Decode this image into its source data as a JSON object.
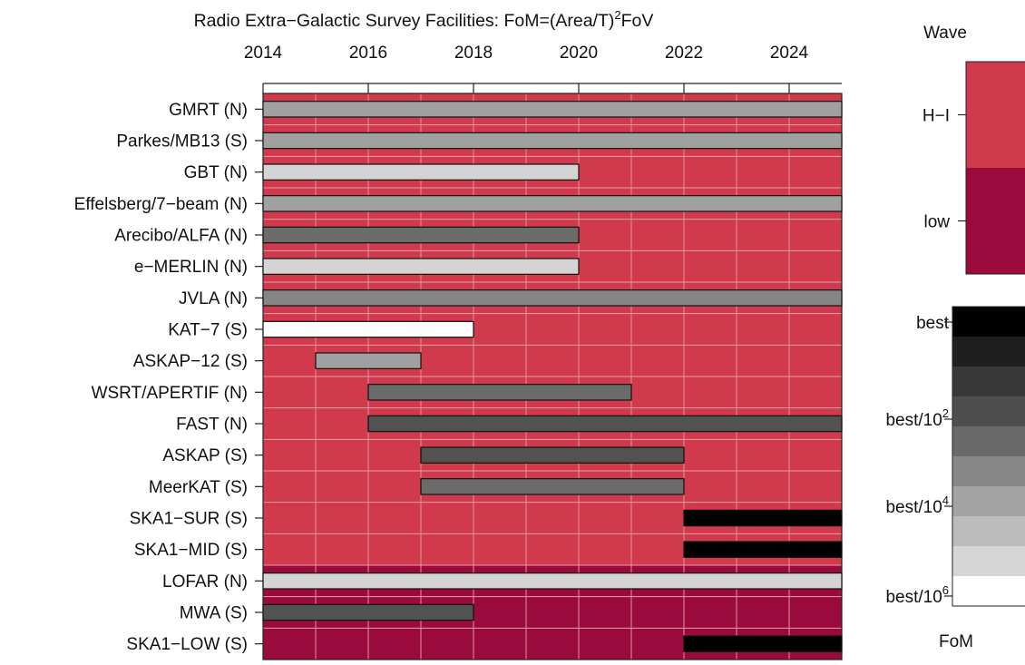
{
  "chart_data": {
    "type": "gantt",
    "title": "Radio Extra−Galactic Survey Facilities: FoM=(Area/T)",
    "title_sup": "2",
    "title_tail": "FoV",
    "x_ticks": [
      "2014",
      "2016",
      "2018",
      "2020",
      "2022",
      "2024"
    ],
    "x_tick_values": [
      2014,
      2016,
      2018,
      2020,
      2022,
      2024
    ],
    "xlim": [
      2014,
      2025
    ],
    "grid": true,
    "facilities": [
      {
        "label": "GMRT (N)",
        "start": 2014,
        "end": 2025,
        "fom_level": 6,
        "wave": "H-I"
      },
      {
        "label": "Parkes/MB13 (S)",
        "start": 2014,
        "end": 2025,
        "fom_level": 6,
        "wave": "H-I"
      },
      {
        "label": "GBT (N)",
        "start": 2014,
        "end": 2020,
        "fom_level": 8,
        "wave": "H-I"
      },
      {
        "label": "Effelsberg/7−beam (N)",
        "start": 2014,
        "end": 2025,
        "fom_level": 6,
        "wave": "H-I"
      },
      {
        "label": "Arecibo/ALFA (N)",
        "start": 2014,
        "end": 2020,
        "fom_level": 4,
        "wave": "H-I"
      },
      {
        "label": "e−MERLIN (N)",
        "start": 2014,
        "end": 2020,
        "fom_level": 8,
        "wave": "H-I"
      },
      {
        "label": "JVLA (N)",
        "start": 2014,
        "end": 2025,
        "fom_level": 5,
        "wave": "H-I"
      },
      {
        "label": "KAT−7 (S)",
        "start": 2014,
        "end": 2018,
        "fom_level": 10,
        "wave": "H-I"
      },
      {
        "label": "ASKAP−12 (S)",
        "start": 2015,
        "end": 2017,
        "fom_level": 6,
        "wave": "H-I"
      },
      {
        "label": "WSRT/APERTIF (N)",
        "start": 2016,
        "end": 2021,
        "fom_level": 4,
        "wave": "H-I"
      },
      {
        "label": "FAST (N)",
        "start": 2016,
        "end": 2025,
        "fom_level": 3,
        "wave": "H-I"
      },
      {
        "label": "ASKAP (S)",
        "start": 2017,
        "end": 2022,
        "fom_level": 3,
        "wave": "H-I"
      },
      {
        "label": "MeerKAT (S)",
        "start": 2017,
        "end": 2022,
        "fom_level": 4,
        "wave": "H-I"
      },
      {
        "label": "SKA1−SUR (S)",
        "start": 2022,
        "end": 2025,
        "fom_level": 0,
        "wave": "H-I"
      },
      {
        "label": "SKA1−MID (S)",
        "start": 2022,
        "end": 2025,
        "fom_level": 0,
        "wave": "H-I"
      },
      {
        "label": "LOFAR (N)",
        "start": 2014,
        "end": 2025,
        "fom_level": 8,
        "wave": "low"
      },
      {
        "label": "MWA (S)",
        "start": 2014,
        "end": 2018,
        "fom_level": 3,
        "wave": "low"
      },
      {
        "label": "SKA1−LOW (S)",
        "start": 2022,
        "end": 2025,
        "fom_level": 0,
        "wave": "low"
      }
    ],
    "wave_legend": {
      "title": "Wave",
      "items": [
        {
          "label": "H−I",
          "key": "H-I",
          "color": "#d03a4c"
        },
        {
          "label": "low",
          "key": "low",
          "color": "#9b0a3d"
        }
      ]
    },
    "fom_legend": {
      "title": "FoM",
      "levels_count": 10,
      "labels": [
        {
          "text": "best",
          "sup": ""
        },
        {
          "text": "best/10",
          "sup": "2"
        },
        {
          "text": "best/10",
          "sup": "4"
        },
        {
          "text": "best/10",
          "sup": "6"
        }
      ]
    },
    "fom_colors": [
      "#000000",
      "#1c1c1c",
      "#383838",
      "#525252",
      "#6b6b6b",
      "#858585",
      "#a0a0a0",
      "#bababa",
      "#d4d4d4",
      "#ebebeb",
      "#ffffff"
    ]
  }
}
